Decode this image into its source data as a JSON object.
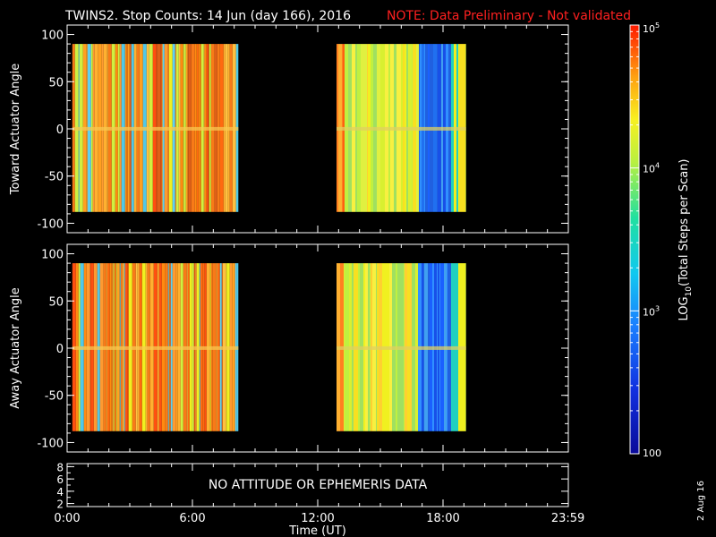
{
  "title": "TWINS2. Stop Counts: 14 Jun (day 166), 2016",
  "note": "NOTE: Data Preliminary - Not validated",
  "footer_date": "2 Aug 16",
  "colors": {
    "note": "#ff2020",
    "background": "#000000",
    "axes": "#ffffff"
  },
  "colorbar": {
    "label": "LOG10(Total Steps per Scan)",
    "label_main": "LOG",
    "label_sub": "10",
    "label_rest": "(Total Steps per Scan)",
    "ticks": [
      {
        "value": 100,
        "text": "100"
      },
      {
        "value": 1000,
        "text": "10",
        "exp": "3"
      },
      {
        "value": 10000,
        "text": "10",
        "exp": "4"
      },
      {
        "value": 100000,
        "text": "10",
        "exp": "5"
      }
    ],
    "range": [
      100,
      100000
    ],
    "scale": "log"
  },
  "chart_data": [
    {
      "type": "heatmap",
      "ylabel": "Toward Actuator Angle",
      "ylim": [
        -110,
        110
      ],
      "yticks": [
        100,
        50,
        0,
        -50,
        -100
      ],
      "xlim": [
        0,
        24
      ],
      "data_windows_hours": [
        [
          0.25,
          8.2
        ],
        [
          12.9,
          19.1
        ]
      ],
      "angle_range": [
        -88,
        90
      ]
    },
    {
      "type": "heatmap",
      "ylabel": "Away Actuator Angle",
      "ylim": [
        -110,
        110
      ],
      "yticks": [
        100,
        50,
        0,
        -50,
        -100
      ],
      "xlim": [
        0,
        24
      ],
      "data_windows_hours": [
        [
          0.25,
          8.2
        ],
        [
          12.9,
          19.1
        ]
      ],
      "angle_range": [
        -88,
        90
      ]
    },
    {
      "type": "table",
      "message": "NO ATTITUDE OR EPHEMERIS DATA",
      "ylim": [
        1.5,
        8.5
      ],
      "yticks": [
        8,
        6,
        4,
        2
      ],
      "xlim": [
        0,
        24
      ],
      "xlabel": "Time (UT)",
      "xticks": [
        {
          "value": 0,
          "label": "0:00"
        },
        {
          "value": 6,
          "label": "6:00"
        },
        {
          "value": 12,
          "label": "12:00"
        },
        {
          "value": 18,
          "label": "18:00"
        },
        {
          "value": 23.983,
          "label": "23:59"
        }
      ]
    }
  ]
}
